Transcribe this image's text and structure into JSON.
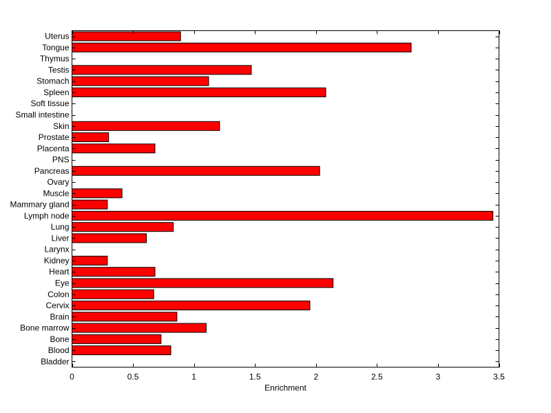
{
  "chart_data": {
    "type": "bar",
    "orientation": "horizontal",
    "title": "",
    "xlabel": "Enrichment",
    "ylabel": "",
    "xlim": [
      0,
      3.5
    ],
    "x_ticks": [
      "0",
      "0.5",
      "1",
      "1.5",
      "2",
      "2.5",
      "3",
      "3.5"
    ],
    "grid": false,
    "bar_color": "#ff0000",
    "categories": [
      "Bladder",
      "Blood",
      "Bone",
      "Bone marrow",
      "Brain",
      "Cervix",
      "Colon",
      "Eye",
      "Heart",
      "Kidney",
      "Larynx",
      "Liver",
      "Lung",
      "Lymph node",
      "Mammary gland",
      "Muscle",
      "Ovary",
      "Pancreas",
      "PNS",
      "Placenta",
      "Prostate",
      "Skin",
      "Small intestine",
      "Soft tissue",
      "Spleen",
      "Stomach",
      "Testis",
      "Thymus",
      "Tongue",
      "Uterus"
    ],
    "values": [
      0,
      0.81,
      0.73,
      1.1,
      0.86,
      1.95,
      0.67,
      2.14,
      0.68,
      0.29,
      0,
      0.61,
      0.83,
      3.45,
      0.29,
      0.41,
      0,
      2.03,
      0,
      0.68,
      0.3,
      1.21,
      0,
      0,
      2.08,
      1.12,
      1.47,
      0,
      2.78,
      0.89
    ]
  }
}
